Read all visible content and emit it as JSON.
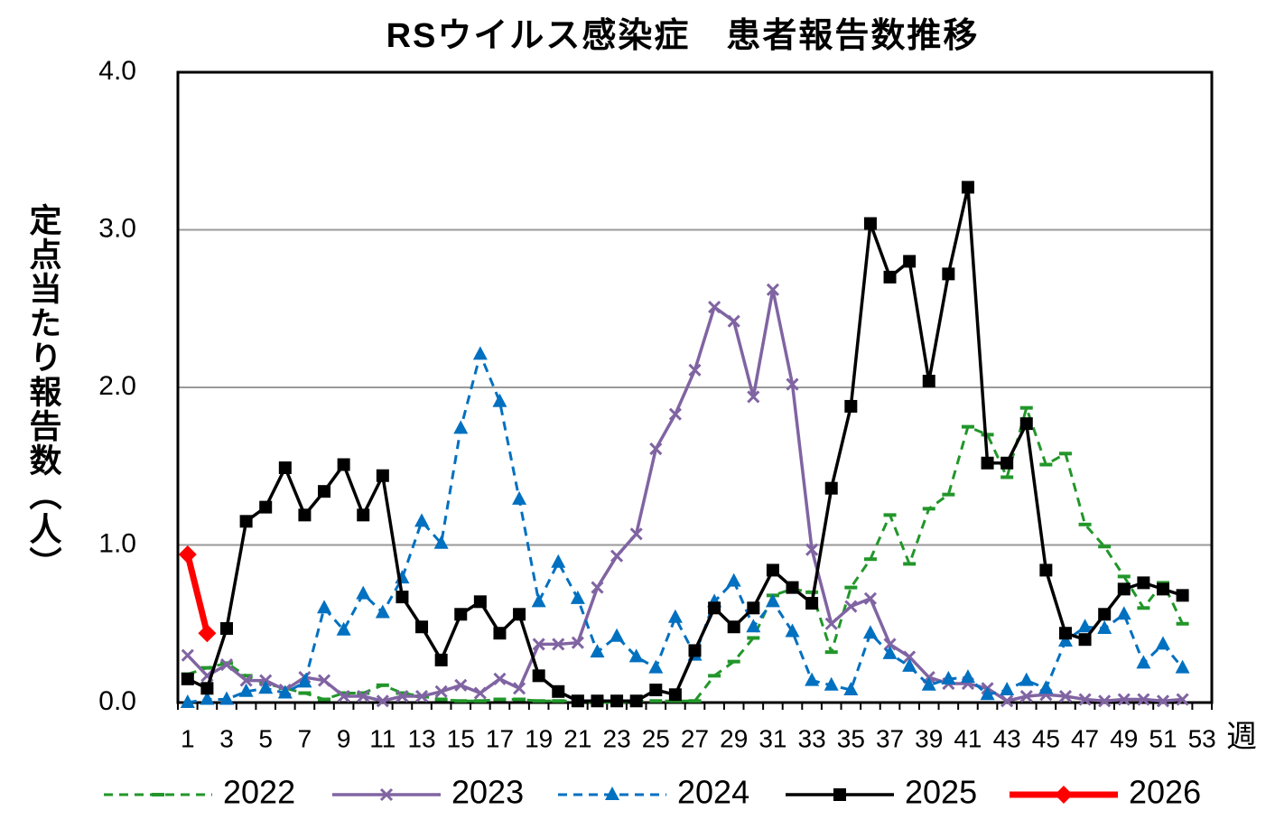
{
  "chart_data": {
    "type": "line",
    "title": "RSウイルス感染症　患者報告数推移",
    "y_label": "定点当たり報告数（人）",
    "x_label": "週",
    "categories": [
      "1",
      null,
      "3",
      null,
      "5",
      null,
      "7",
      null,
      "9",
      null,
      "11",
      null,
      "13",
      null,
      "15",
      null,
      "17",
      null,
      "19",
      null,
      "21",
      null,
      "23",
      null,
      "25",
      null,
      "27",
      null,
      "29",
      null,
      "31",
      null,
      "33",
      null,
      "35",
      null,
      "37",
      null,
      "39",
      null,
      "41",
      null,
      "43",
      null,
      "45",
      null,
      "47",
      null,
      "49",
      null,
      "51",
      null,
      "53"
    ],
    "ylim": [
      0,
      4
    ],
    "yticks": [
      {
        "value": 0,
        "label": "0.0"
      },
      {
        "value": 1,
        "label": "1.0"
      },
      {
        "value": 2,
        "label": "2.0"
      },
      {
        "value": 3,
        "label": "3.0"
      },
      {
        "value": 4,
        "label": "4.0"
      }
    ],
    "grid": true,
    "legend": "bottom",
    "series": [
      {
        "name": "2022",
        "color": "#22962a",
        "dash": true,
        "marker": "dash",
        "width": 3,
        "values": [
          0.18,
          0.22,
          0.25,
          0.17,
          0.12,
          0.09,
          0.06,
          0.02,
          0.06,
          0.06,
          0.11,
          0.06,
          0.04,
          0.02,
          0.01,
          0.01,
          0.02,
          0.02,
          0.01,
          0.01,
          0.01,
          0.0,
          0.0,
          0.01,
          0.01,
          0.01,
          0.01,
          0.17,
          0.26,
          0.41,
          0.68,
          0.72,
          0.7,
          0.32,
          0.73,
          0.91,
          1.19,
          0.88,
          1.23,
          1.32,
          1.75,
          1.7,
          1.43,
          1.87,
          1.51,
          1.58,
          1.13,
          0.99,
          0.8,
          0.6,
          0.76,
          0.5,
          null
        ]
      },
      {
        "name": "2023",
        "color": "#8064a2",
        "dash": false,
        "marker": "x",
        "width": 3.5,
        "values": [
          0.3,
          0.17,
          0.24,
          0.14,
          0.14,
          0.08,
          0.16,
          0.14,
          0.04,
          0.04,
          0.01,
          0.04,
          0.04,
          0.07,
          0.11,
          0.06,
          0.15,
          0.09,
          0.37,
          0.37,
          0.38,
          0.73,
          0.93,
          1.07,
          1.61,
          1.83,
          2.11,
          2.51,
          2.42,
          1.94,
          2.62,
          2.02,
          0.97,
          0.5,
          0.61,
          0.66,
          0.37,
          0.29,
          0.16,
          0.12,
          0.12,
          0.09,
          0.01,
          0.04,
          0.05,
          0.04,
          0.02,
          0.01,
          0.02,
          0.02,
          0.01,
          0.02,
          null
        ]
      },
      {
        "name": "2024",
        "color": "#0070c0",
        "dash": true,
        "marker": "triangle",
        "width": 3,
        "values": [
          0.0,
          0.02,
          0.02,
          0.07,
          0.09,
          0.06,
          0.13,
          0.6,
          0.46,
          0.69,
          0.57,
          0.79,
          1.15,
          1.01,
          1.74,
          2.21,
          1.91,
          1.29,
          0.64,
          0.89,
          0.66,
          0.32,
          0.42,
          0.29,
          0.22,
          0.54,
          0.3,
          0.64,
          0.77,
          0.48,
          0.64,
          0.45,
          0.14,
          0.11,
          0.08,
          0.44,
          0.31,
          0.23,
          0.11,
          0.15,
          0.16,
          0.05,
          0.08,
          0.14,
          0.09,
          0.39,
          0.48,
          0.47,
          0.56,
          0.25,
          0.37,
          0.22,
          null
        ]
      },
      {
        "name": "2025",
        "color": "#000000",
        "dash": false,
        "marker": "square",
        "width": 3.5,
        "values": [
          0.15,
          0.09,
          0.47,
          1.15,
          1.24,
          1.49,
          1.19,
          1.34,
          1.51,
          1.19,
          1.44,
          0.67,
          0.48,
          0.27,
          0.56,
          0.64,
          0.44,
          0.56,
          0.17,
          0.07,
          0.01,
          0.01,
          0.01,
          0.01,
          0.08,
          0.05,
          0.33,
          0.6,
          0.48,
          0.6,
          0.84,
          0.73,
          0.63,
          1.36,
          1.88,
          3.04,
          2.7,
          2.8,
          2.04,
          2.72,
          3.27,
          1.52,
          1.52,
          1.77,
          0.84,
          0.44,
          0.4,
          0.56,
          0.72,
          0.76,
          0.72,
          0.68,
          null
        ]
      },
      {
        "name": "2026",
        "color": "#ff0000",
        "dash": false,
        "marker": "diamond",
        "width": 7,
        "values": [
          0.94,
          0.44,
          null,
          null,
          null,
          null,
          null,
          null,
          null,
          null,
          null,
          null,
          null,
          null,
          null,
          null,
          null,
          null,
          null,
          null,
          null,
          null,
          null,
          null,
          null,
          null,
          null,
          null,
          null,
          null,
          null,
          null,
          null,
          null,
          null,
          null,
          null,
          null,
          null,
          null,
          null,
          null,
          null,
          null,
          null,
          null,
          null,
          null,
          null,
          null,
          null,
          null,
          null
        ]
      }
    ]
  }
}
